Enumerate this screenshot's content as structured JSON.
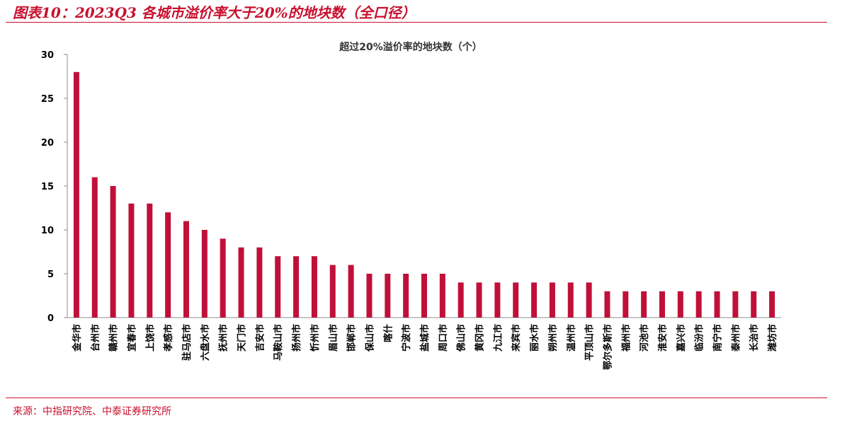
{
  "header": {
    "title": "图表10：2023Q3 各城市溢价率大于20%的地块数（全口径）"
  },
  "footer": {
    "source": "来源：中指研究院、中泰证券研究所"
  },
  "colors": {
    "accent": "#c8102e",
    "bar": "#c0103a"
  },
  "chart_data": {
    "type": "bar",
    "title": "超过20%溢价率的地块数（个）",
    "xlabel": "",
    "ylabel": "",
    "ylim": [
      0,
      30
    ],
    "yticks": [
      0,
      5,
      10,
      15,
      20,
      25,
      30
    ],
    "grid": false,
    "categories": [
      "金华市",
      "台州市",
      "赣州市",
      "宜春市",
      "上饶市",
      "孝感市",
      "驻马店市",
      "六盘水市",
      "抚州市",
      "天门市",
      "吉安市",
      "马鞍山市",
      "扬州市",
      "忻州市",
      "眉山市",
      "邯郸市",
      "保山市",
      "喀什",
      "宁波市",
      "盐城市",
      "周口市",
      "佛山市",
      "黄冈市",
      "九江市",
      "来宾市",
      "丽水市",
      "朔州市",
      "温州市",
      "平顶山市",
      "鄂尔多斯市",
      "福州市",
      "河池市",
      "淮安市",
      "嘉兴市",
      "临汾市",
      "南宁市",
      "泰州市",
      "长治市",
      "潍坊市"
    ],
    "values": [
      28,
      16,
      15,
      13,
      13,
      12,
      11,
      10,
      9,
      8,
      8,
      7,
      7,
      7,
      6,
      6,
      5,
      5,
      5,
      5,
      5,
      4,
      4,
      4,
      4,
      4,
      4,
      4,
      4,
      3,
      3,
      3,
      3,
      3,
      3,
      3,
      3,
      3,
      3
    ]
  }
}
